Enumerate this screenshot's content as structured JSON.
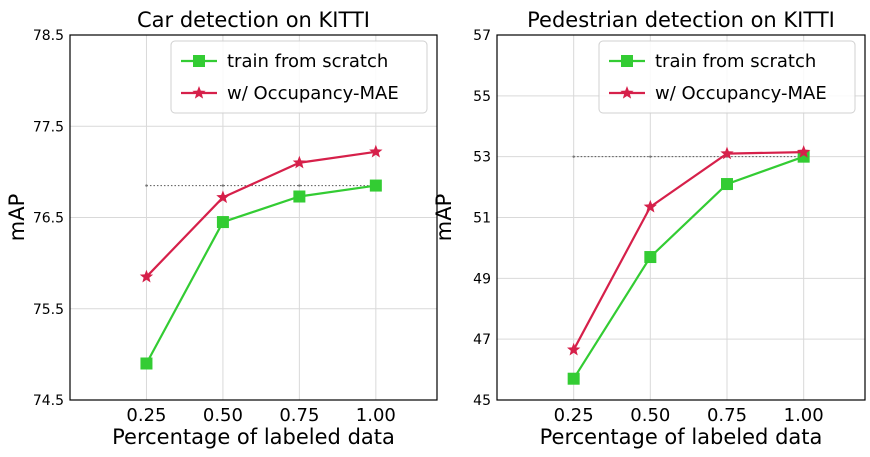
{
  "chart_data": [
    {
      "type": "line",
      "title": "Car detection on KITTI",
      "xlabel": "Percentage of labeled data",
      "ylabel": "mAP",
      "x": [
        0.25,
        0.5,
        0.75,
        1.0
      ],
      "xticks": [
        "0.25",
        "0.50",
        "0.75",
        "1.00"
      ],
      "xlim": [
        0.0,
        1.2
      ],
      "ylim": [
        74.5,
        78.5
      ],
      "yticks": [
        "74.5",
        "75.5",
        "76.5",
        "77.5",
        "78.5"
      ],
      "grid": true,
      "legend": "top-right",
      "reference_line": {
        "y": 76.85,
        "x_from": 0.25,
        "x_to": 1.0
      },
      "series": [
        {
          "name": "train from scratch",
          "color": "#33cc33",
          "marker": "square",
          "values": [
            74.9,
            76.45,
            76.73,
            76.85
          ]
        },
        {
          "name": "w/ Occupancy-MAE",
          "color": "#d6204a",
          "marker": "star",
          "values": [
            75.85,
            76.72,
            77.1,
            77.22
          ]
        }
      ]
    },
    {
      "type": "line",
      "title": "Pedestrian detection on KITTI",
      "xlabel": "Percentage of labeled data",
      "ylabel": "mAP",
      "x": [
        0.25,
        0.5,
        0.75,
        1.0
      ],
      "xticks": [
        "0.25",
        "0.50",
        "0.75",
        "1.00"
      ],
      "xlim": [
        0.0,
        1.2
      ],
      "ylim": [
        45,
        57
      ],
      "yticks": [
        "45",
        "47",
        "49",
        "51",
        "53",
        "55",
        "57"
      ],
      "grid": true,
      "legend": "top-right",
      "reference_line": {
        "y": 53.0,
        "x_from": 0.25,
        "x_to": 1.0
      },
      "series": [
        {
          "name": "train from scratch",
          "color": "#33cc33",
          "marker": "square",
          "values": [
            45.7,
            49.7,
            52.1,
            53.0
          ]
        },
        {
          "name": "w/ Occupancy-MAE",
          "color": "#d6204a",
          "marker": "star",
          "values": [
            46.65,
            51.35,
            53.1,
            53.15
          ]
        }
      ]
    }
  ]
}
